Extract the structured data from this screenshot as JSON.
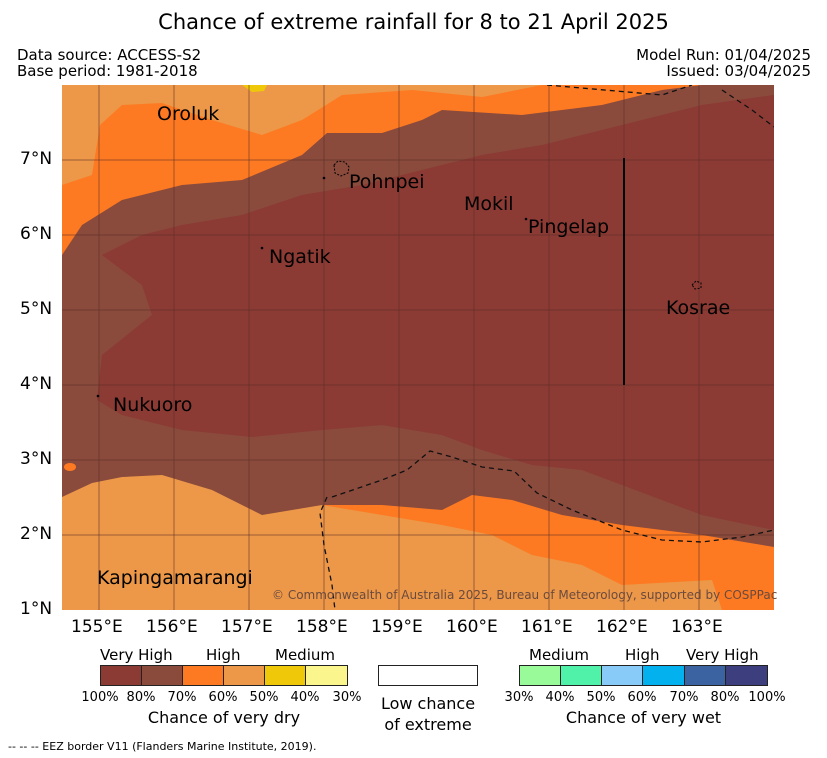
{
  "title": "Chance of extreme rainfall for 8 to 21 April 2025",
  "meta": {
    "data_source": "Data source: ACCESS-S2",
    "base_period": "Base period: 1981-2018",
    "model_run": "Model Run: 01/04/2025",
    "issued": "Issued: 03/04/2025"
  },
  "map": {
    "places": [
      {
        "key": "oroluk",
        "name": "Oroluk"
      },
      {
        "key": "pohnpei",
        "name": "Pohnpei"
      },
      {
        "key": "mokil",
        "name": "Mokil"
      },
      {
        "key": "pingelap",
        "name": "Pingelap"
      },
      {
        "key": "ngatik",
        "name": "Ngatik"
      },
      {
        "key": "kosrae",
        "name": "Kosrae"
      },
      {
        "key": "nukuoro",
        "name": "Nukuoro"
      },
      {
        "key": "kapingamarangi",
        "name": "Kapingamarangi"
      }
    ],
    "lat_labels": [
      "7°N",
      "6°N",
      "5°N",
      "4°N",
      "3°N",
      "2°N",
      "1°N"
    ],
    "lon_labels": [
      "155°E",
      "156°E",
      "157°E",
      "158°E",
      "159°E",
      "160°E",
      "161°E",
      "162°E",
      "163°E"
    ],
    "copyright": "© Commonwealth of Australia 2025, Bureau of Meteorology, supported by COSPPac"
  },
  "legend": {
    "dry": {
      "heads": [
        "Very High",
        "High",
        "Medium"
      ],
      "percents": [
        "100%",
        "80%",
        "70%",
        "60%",
        "50%",
        "40%",
        "30%"
      ],
      "colors": [
        "#8b3a34",
        "#8a4a3c",
        "#fd7a22",
        "#ec9848",
        "#eec809",
        "#fbf58e"
      ],
      "caption": "Chance of very dry"
    },
    "low": {
      "caption_line1": "Low chance",
      "caption_line2": "of extreme",
      "color": "#ffffff"
    },
    "wet": {
      "heads": [
        "Medium",
        "High",
        "Very High"
      ],
      "percents": [
        "30%",
        "40%",
        "50%",
        "60%",
        "70%",
        "80%",
        "100%"
      ],
      "colors": [
        "#98fa98",
        "#4ff2a8",
        "#88cbf8",
        "#03b1ef",
        "#3b63a2",
        "#3c3e7d"
      ],
      "caption": "Chance of very wet"
    }
  },
  "footnote": "-- -- -- EEZ border V11 (Flanders Marine Institute, 2019)."
}
